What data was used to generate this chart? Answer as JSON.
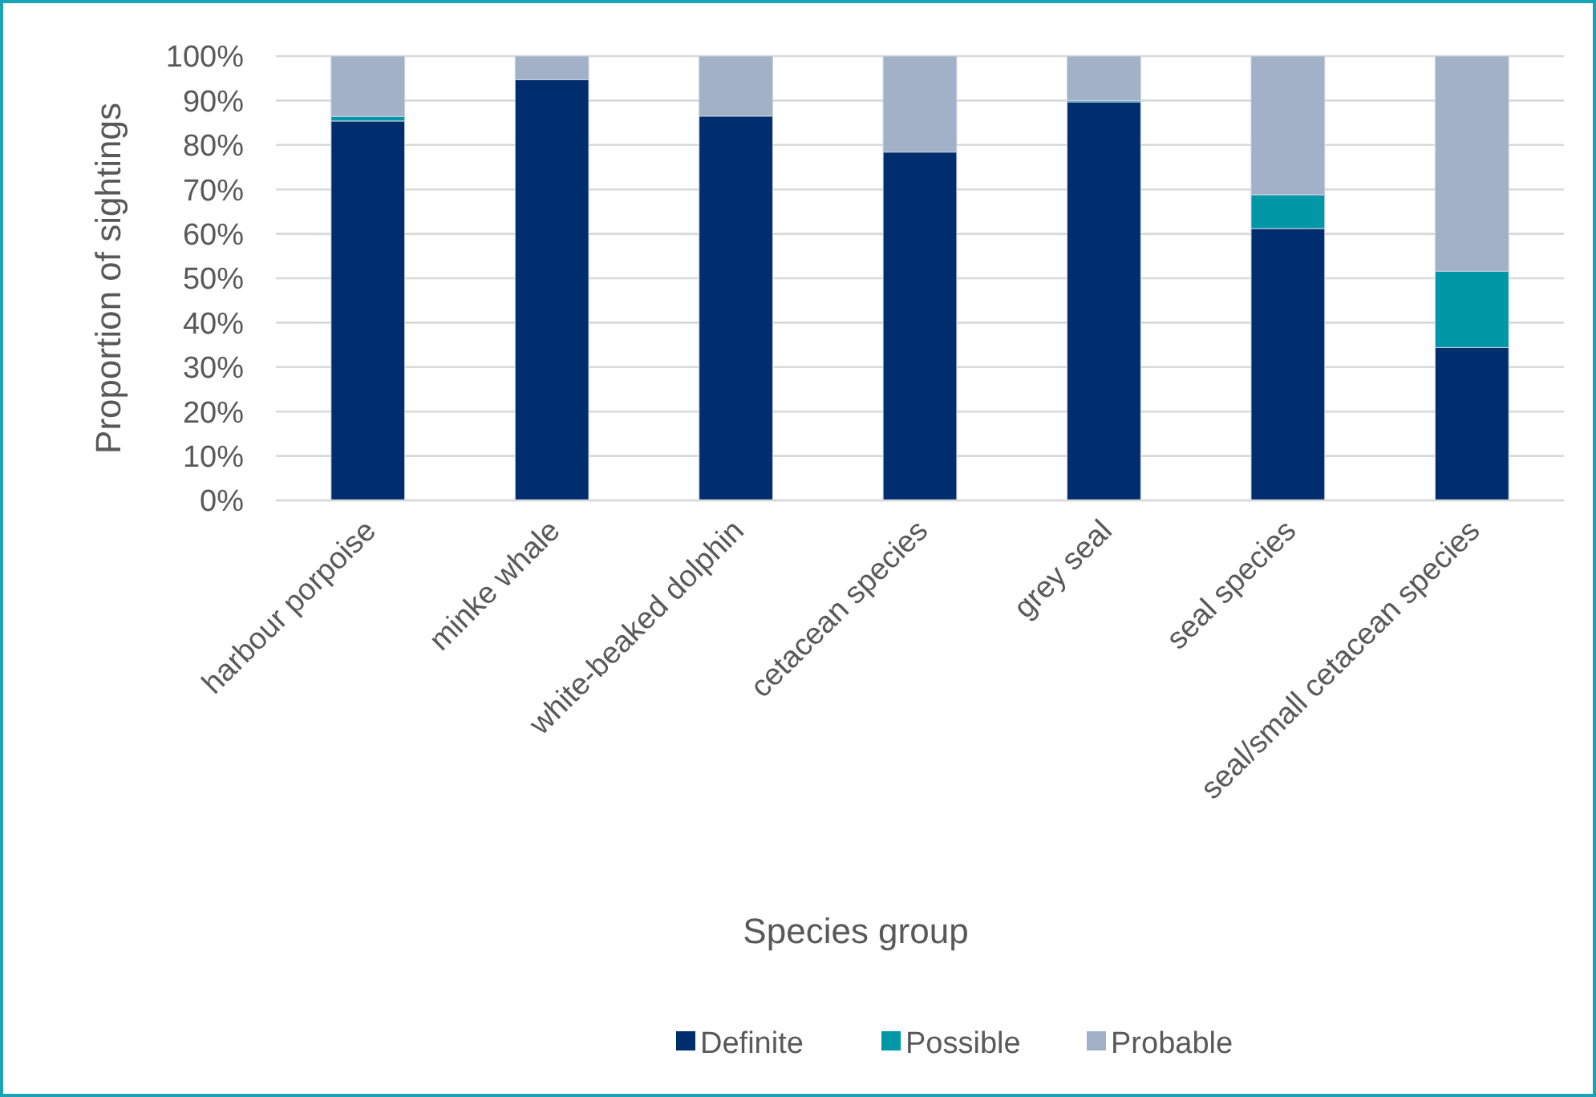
{
  "chart_data": {
    "type": "bar",
    "stacked": true,
    "xlabel": "Species group",
    "ylabel": "Proportion of sightings",
    "categories": [
      "harbour porpoise",
      "minke whale",
      "white-beaked dolphin",
      "cetacean species",
      "grey seal",
      "seal species",
      "seal/small cetacean species"
    ],
    "series": [
      {
        "name": "Definite",
        "color": "#002d6e",
        "values": [
          85.4,
          94.7,
          86.5,
          78.4,
          89.7,
          61.2,
          34.4
        ]
      },
      {
        "name": "Possible",
        "color": "#0097a7",
        "values": [
          1.0,
          0,
          0,
          0,
          0.3,
          7.6,
          17.2
        ]
      },
      {
        "name": "Probable",
        "color": "#a2b1c8",
        "values": [
          13.6,
          5.3,
          13.5,
          21.6,
          10.0,
          31.2,
          48.4
        ]
      }
    ],
    "ylim": [
      0,
      100
    ],
    "yticks": [
      {
        "value": 0,
        "label": "0%"
      },
      {
        "value": 10,
        "label": "10%"
      },
      {
        "value": 20,
        "label": "20%"
      },
      {
        "value": 30,
        "label": "30%"
      },
      {
        "value": 40,
        "label": "40%"
      },
      {
        "value": 50,
        "label": "50%"
      },
      {
        "value": 60,
        "label": "60%"
      },
      {
        "value": 70,
        "label": "70%"
      },
      {
        "value": 80,
        "label": "80%"
      },
      {
        "value": 90,
        "label": "90%"
      },
      {
        "value": 100,
        "label": "100%"
      }
    ],
    "grid": "y",
    "legend": "bottom"
  }
}
